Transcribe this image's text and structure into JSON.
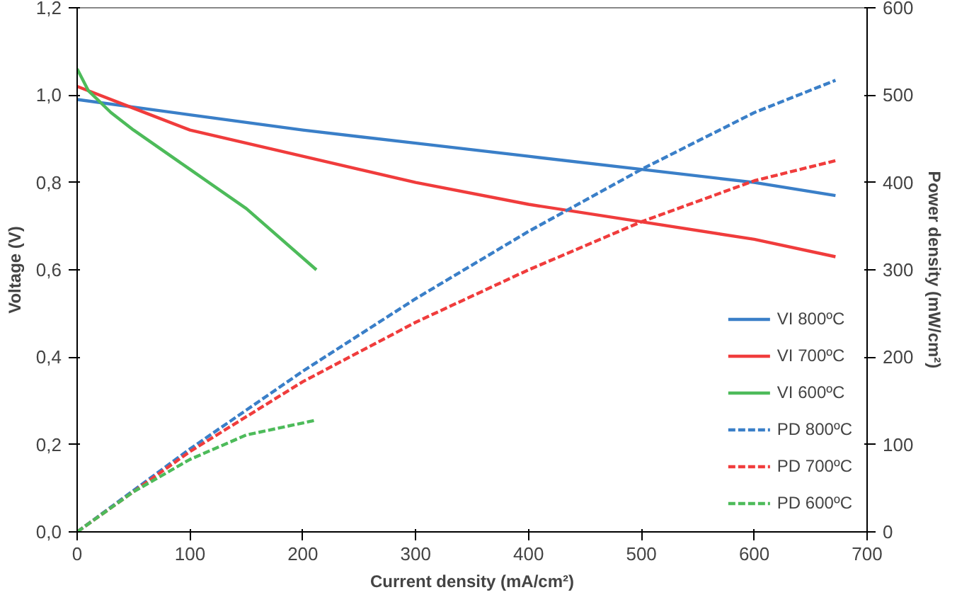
{
  "chart_data": {
    "type": "line",
    "xlabel": "Current density (mA/cm²)",
    "ylabel": "Voltage (V)",
    "y2label": "Power density (mW/cm²)",
    "xlim": [
      0,
      700
    ],
    "xticks": [
      0,
      100,
      200,
      300,
      400,
      500,
      600,
      700
    ],
    "ylim": [
      0,
      1.2
    ],
    "yticks": [
      {
        "value": 0,
        "label": "0,0"
      },
      {
        "value": 0.2,
        "label": "0,2"
      },
      {
        "value": 0.4,
        "label": "0,4"
      },
      {
        "value": 0.6,
        "label": "0,6"
      },
      {
        "value": 0.8,
        "label": "0,8"
      },
      {
        "value": 1.0,
        "label": "1,0"
      },
      {
        "value": 1.2,
        "label": "1,2"
      }
    ],
    "y2lim": [
      0,
      600
    ],
    "y2ticks": [
      0,
      100,
      200,
      300,
      400,
      500,
      600
    ],
    "grid": false,
    "legend": "bottom right",
    "series": [
      {
        "name": "VI 800ºC",
        "color": "#3a7fc8",
        "line_style": "solid",
        "x": [
          0,
          100,
          200,
          300,
          400,
          500,
          600,
          672
        ],
        "values": [
          0.99,
          0.955,
          0.92,
          0.89,
          0.86,
          0.83,
          0.8,
          0.77
        ]
      },
      {
        "name": "VI 700ºC",
        "color": "#f03c3c",
        "line_style": "solid",
        "x": [
          0,
          50,
          100,
          200,
          300,
          400,
          500,
          600,
          672
        ],
        "values": [
          1.02,
          0.97,
          0.92,
          0.86,
          0.8,
          0.75,
          0.71,
          0.67,
          0.63
        ]
      },
      {
        "name": "VI 600ºC",
        "color": "#4dbb5a",
        "line_style": "solid",
        "x": [
          0,
          10,
          30,
          50,
          100,
          150,
          212
        ],
        "values": [
          1.06,
          1.01,
          0.96,
          0.92,
          0.83,
          0.74,
          0.6
        ]
      },
      {
        "name": "PD 800ºC",
        "color": "#3a7fc8",
        "line_style": "dashed",
        "axis": "y2",
        "x": [
          0,
          100,
          200,
          300,
          400,
          500,
          600,
          672
        ],
        "values": [
          0,
          95,
          184,
          267,
          344,
          415,
          480,
          517
        ]
      },
      {
        "name": "PD 700ºC",
        "color": "#f03c3c",
        "line_style": "dashed",
        "axis": "y2",
        "x": [
          0,
          100,
          200,
          300,
          400,
          500,
          600,
          672
        ],
        "values": [
          0,
          92,
          172,
          240,
          300,
          355,
          402,
          425
        ]
      },
      {
        "name": "PD 600ºC",
        "color": "#4dbb5a",
        "line_style": "dashed",
        "axis": "y2",
        "x": [
          0,
          50,
          100,
          150,
          212
        ],
        "values": [
          0,
          46,
          83,
          111,
          128
        ]
      }
    ]
  }
}
